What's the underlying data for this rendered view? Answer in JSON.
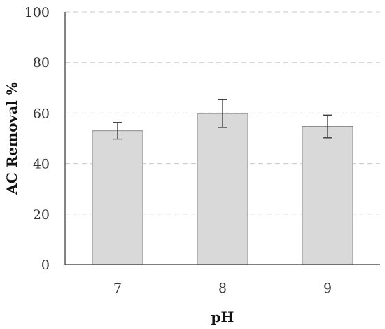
{
  "chart_data": {
    "type": "bar",
    "categories": [
      "7",
      "8",
      "9"
    ],
    "values": [
      53,
      59.8,
      54.7
    ],
    "error": [
      3.3,
      5.5,
      4.5
    ],
    "xlabel": "pH",
    "ylabel": "AC Removal %",
    "ylim": [
      0,
      100
    ],
    "yticks": [
      0,
      20,
      40,
      60,
      80,
      100
    ],
    "grid": true,
    "bar_color": "#d9d9d9"
  }
}
